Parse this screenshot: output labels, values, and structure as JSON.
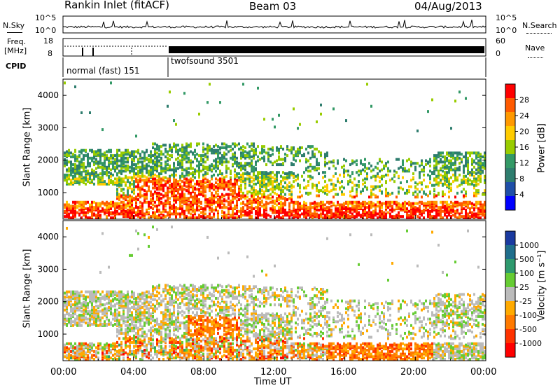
{
  "header": {
    "station": "Rankin Inlet (fitACF)",
    "beam": "Beam 03",
    "date": "04/Aug/2013"
  },
  "top_panel": {
    "left_label": "N.Sky",
    "right_label": "N.Search",
    "ticks_left": [
      "10^5",
      "10^0"
    ],
    "ticks_right": [
      "10^5",
      "10^0"
    ]
  },
  "freq_panel": {
    "left_label_line1": "Freq.",
    "left_label_line2": "[MHz]",
    "right_label": "Nave",
    "ticks_left": [
      "18",
      "8"
    ],
    "ticks_right": [
      "60",
      "0"
    ]
  },
  "cpid": {
    "label": "CPID",
    "modes": [
      "normal (fast) 151",
      "twofsound 3501"
    ]
  },
  "chart_data": [
    {
      "type": "heatmap",
      "name": "power",
      "ylabel": "Slant Range [km]",
      "xlabel": "Time UT",
      "x_ticks": [
        "00:00",
        "04:00",
        "08:00",
        "12:00",
        "16:00",
        "20:00",
        "00:00"
      ],
      "y_ticks": [
        1000,
        2000,
        3000,
        4000
      ],
      "ylim": [
        180,
        4500
      ],
      "colorbar_label": "Power [dB]",
      "colorbar_ticks": [
        "28",
        "24",
        "20",
        "16",
        "12",
        "8",
        "4"
      ],
      "colorbar_colors": [
        "#ff0000",
        "#ff5a00",
        "#ff9900",
        "#ffcc00",
        "#99cc00",
        "#339966",
        "#2e7d6e",
        "#1f4fa8",
        "#0000ff"
      ]
    },
    {
      "type": "heatmap",
      "name": "velocity",
      "ylabel": "Slant Range [km]",
      "xlabel": "Time UT",
      "x_ticks": [
        "00:00",
        "04:00",
        "08:00",
        "12:00",
        "16:00",
        "20:00",
        "00:00"
      ],
      "y_ticks": [
        1000,
        2000,
        3000,
        4000
      ],
      "ylim": [
        180,
        4500
      ],
      "colorbar_label": "Velocity [m s⁻¹]",
      "colorbar_ticks": [
        "1000",
        "500",
        "100",
        "25",
        "-25",
        "-100",
        "-500",
        "-1000"
      ],
      "colorbar_colors": [
        "#1a3aa0",
        "#1f6e8c",
        "#2e9a6e",
        "#66cc33",
        "#bbbbbb",
        "#ffaa00",
        "#ff7a00",
        "#ff3300",
        "#ff0000"
      ]
    }
  ]
}
